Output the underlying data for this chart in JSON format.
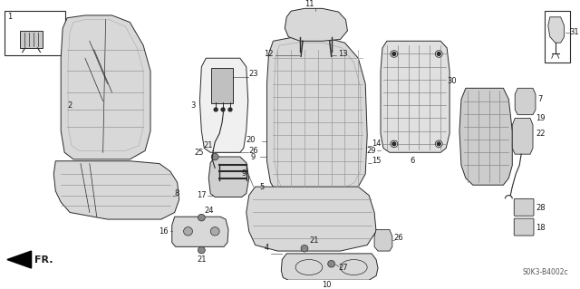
{
  "bg_color": "#ffffff",
  "line_color": "#2a2a2a",
  "text_color": "#1a1a1a",
  "watermark": "S0K3-B4002c",
  "label_fontsize": 6.0,
  "lw": 0.7,
  "seat_fill": "#e8e8e8",
  "seat_fill2": "#d8d8d8",
  "frame_fill": "#cccccc"
}
